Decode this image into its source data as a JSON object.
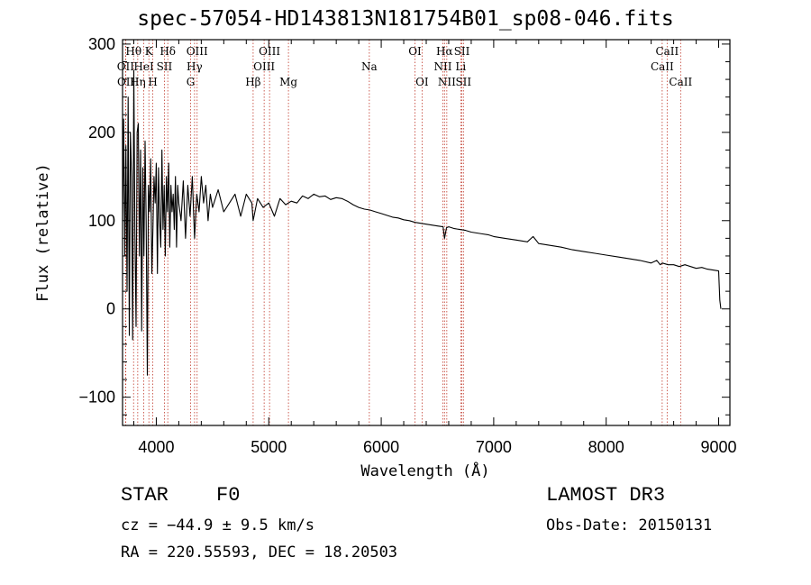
{
  "chart_data": {
    "type": "line",
    "title": "spec-57054-HD143813N181754B01_sp08-046.fits",
    "xlabel": "Wavelength (Å)",
    "ylabel": "Flux (relative)",
    "xlim": [
      3700,
      9100
    ],
    "ylim": [
      -132,
      305
    ],
    "x_ticks": [
      4000,
      5000,
      6000,
      7000,
      8000,
      9000
    ],
    "y_ticks": [
      -100,
      0,
      100,
      200,
      300
    ],
    "grid": false,
    "series": [
      {
        "name": "flux",
        "x": [
          3700,
          3710,
          3720,
          3730,
          3740,
          3750,
          3760,
          3770,
          3780,
          3790,
          3800,
          3810,
          3820,
          3830,
          3840,
          3850,
          3860,
          3870,
          3880,
          3890,
          3900,
          3910,
          3920,
          3930,
          3940,
          3950,
          3960,
          3970,
          3980,
          3990,
          4000,
          4010,
          4020,
          4030,
          4040,
          4050,
          4060,
          4070,
          4080,
          4090,
          4100,
          4110,
          4120,
          4130,
          4140,
          4150,
          4160,
          4170,
          4180,
          4190,
          4200,
          4220,
          4240,
          4260,
          4280,
          4300,
          4320,
          4340,
          4360,
          4380,
          4400,
          4420,
          4440,
          4460,
          4480,
          4500,
          4550,
          4600,
          4650,
          4700,
          4750,
          4800,
          4850,
          4861,
          4900,
          4950,
          5000,
          5050,
          5100,
          5150,
          5200,
          5250,
          5300,
          5350,
          5400,
          5450,
          5500,
          5550,
          5600,
          5650,
          5700,
          5750,
          5800,
          5850,
          5900,
          5950,
          6000,
          6050,
          6100,
          6150,
          6200,
          6250,
          6300,
          6350,
          6400,
          6450,
          6500,
          6550,
          6563,
          6580,
          6600,
          6650,
          6700,
          6750,
          6800,
          6850,
          6900,
          6950,
          7000,
          7100,
          7200,
          7300,
          7350,
          7400,
          7500,
          7600,
          7700,
          7800,
          7900,
          8000,
          8100,
          8200,
          8300,
          8400,
          8450,
          8480,
          8500,
          8550,
          8600,
          8650,
          8700,
          8750,
          8800,
          8850,
          8900,
          8950,
          9000,
          9010,
          9020
        ],
        "values": [
          100,
          215,
          60,
          185,
          20,
          240,
          -30,
          200,
          150,
          -35,
          270,
          90,
          -20,
          200,
          210,
          60,
          180,
          -25,
          160,
          60,
          190,
          100,
          -75,
          140,
          110,
          170,
          40,
          90,
          150,
          120,
          165,
          40,
          160,
          100,
          70,
          180,
          90,
          140,
          60,
          150,
          110,
          165,
          70,
          140,
          110,
          130,
          90,
          150,
          70,
          140,
          120,
          100,
          145,
          80,
          140,
          105,
          150,
          80,
          130,
          110,
          150,
          120,
          140,
          100,
          130,
          115,
          135,
          110,
          120,
          130,
          105,
          130,
          120,
          100,
          125,
          115,
          120,
          105,
          125,
          118,
          122,
          120,
          128,
          125,
          130,
          127,
          128,
          124,
          126,
          125,
          122,
          118,
          115,
          113,
          112,
          110,
          108,
          106,
          104,
          103,
          101,
          100,
          98,
          97,
          96,
          95,
          94,
          93,
          80,
          92,
          93,
          91,
          90,
          89,
          87,
          86,
          85,
          84,
          82,
          80,
          78,
          76,
          82,
          74,
          72,
          70,
          67,
          65,
          63,
          61,
          59,
          57,
          55,
          52,
          55,
          50,
          52,
          50,
          50,
          48,
          50,
          48,
          46,
          47,
          45,
          44,
          43,
          10,
          0
        ]
      }
    ],
    "line_annotations": [
      {
        "label": "Hθ",
        "wavelength": 3798,
        "row": 1
      },
      {
        "label": "OII",
        "wavelength": 3727,
        "row": 2
      },
      {
        "label": "OII",
        "wavelength": 3729,
        "row": 3
      },
      {
        "label": "Hη",
        "wavelength": 3835,
        "row": 3
      },
      {
        "label": "K",
        "wavelength": 3934,
        "row": 1
      },
      {
        "label": "HeI",
        "wavelength": 3889,
        "row": 2
      },
      {
        "label": "H",
        "wavelength": 3969,
        "row": 3
      },
      {
        "label": "SII",
        "wavelength": 4072,
        "row": 2
      },
      {
        "label": "Hδ",
        "wavelength": 4102,
        "row": 1
      },
      {
        "label": "OIII",
        "wavelength": 4363,
        "row": 1
      },
      {
        "label": "Hγ",
        "wavelength": 4340,
        "row": 2
      },
      {
        "label": "G",
        "wavelength": 4305,
        "row": 3
      },
      {
        "label": "Hβ",
        "wavelength": 4861,
        "row": 3
      },
      {
        "label": "OIII",
        "wavelength": 5007,
        "row": 1
      },
      {
        "label": "OIII",
        "wavelength": 4959,
        "row": 2
      },
      {
        "label": "Mg",
        "wavelength": 5175,
        "row": 3
      },
      {
        "label": "Na",
        "wavelength": 5894,
        "row": 2
      },
      {
        "label": "OI",
        "wavelength": 6300,
        "row": 1
      },
      {
        "label": "OI",
        "wavelength": 6363,
        "row": 3
      },
      {
        "label": "Hα",
        "wavelength": 6563,
        "row": 1
      },
      {
        "label": "NII",
        "wavelength": 6548,
        "row": 2
      },
      {
        "label": "NII",
        "wavelength": 6583,
        "row": 3
      },
      {
        "label": "SII",
        "wavelength": 6717,
        "row": 1
      },
      {
        "label": "Li",
        "wavelength": 6707,
        "row": 2
      },
      {
        "label": "SII",
        "wavelength": 6731,
        "row": 3
      },
      {
        "label": "CaII",
        "wavelength": 8542,
        "row": 1
      },
      {
        "label": "CaII",
        "wavelength": 8498,
        "row": 2
      },
      {
        "label": "CaII",
        "wavelength": 8662,
        "row": 3
      }
    ]
  },
  "info": {
    "object_class": "STAR",
    "subclass": "F0",
    "cz": "cz = −44.9 ± 9.5 km/s",
    "radec": "RA = 220.55593, DEC =  18.20503",
    "survey": "LAMOST DR3",
    "obs_date": "Obs-Date: 20150131"
  }
}
